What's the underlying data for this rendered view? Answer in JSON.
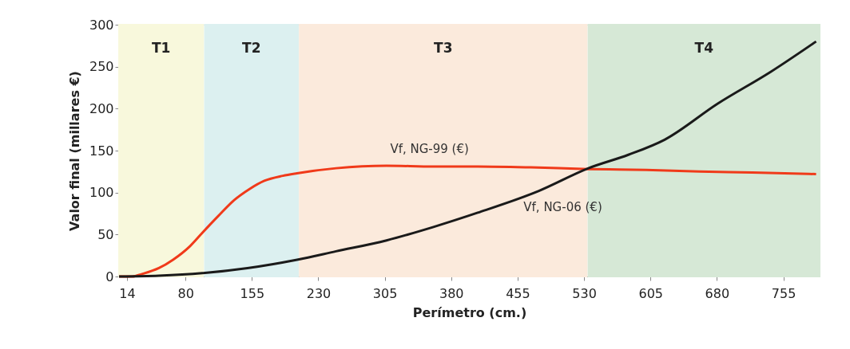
{
  "chart_data": {
    "type": "line",
    "xlabel": "Perímetro (cm.)",
    "ylabel": "Valor final (millares €)",
    "xlim": [
      5,
      796
    ],
    "ylim": [
      0,
      300
    ],
    "xticks": [
      14,
      80,
      155,
      230,
      305,
      380,
      455,
      530,
      605,
      680,
      755
    ],
    "yticks": [
      0,
      50,
      100,
      150,
      200,
      250,
      300
    ],
    "grid": false,
    "line_style": "solid",
    "marker": "none",
    "bands": [
      {
        "axis": "x",
        "from": 5,
        "to": 100,
        "label": "T1",
        "color": "#f8f8dc"
      },
      {
        "axis": "x",
        "from": 102,
        "to": 207,
        "label": "T2",
        "color": "#dcf0f0"
      },
      {
        "axis": "x",
        "from": 209,
        "to": 533,
        "label": "T3",
        "color": "#fbeadc"
      },
      {
        "axis": "x",
        "from": 535,
        "to": 796,
        "label": "T4",
        "color": "#d6e8d6"
      }
    ],
    "series": [
      {
        "name": "Vf, NG-99 (€)",
        "color": "#f03a1a",
        "x": [
          5,
          20,
          31,
          50,
          66,
          85,
          99,
          117,
          135,
          152,
          169,
          190,
          206,
          250,
          307,
          360,
          410,
          470,
          535,
          600,
          660,
          720,
          792
        ],
        "values": [
          0,
          0,
          3,
          10,
          20,
          36,
          52,
          72,
          91,
          104,
          114,
          120,
          123,
          129,
          132,
          131,
          131,
          130,
          128,
          127,
          125,
          124,
          122
        ]
      },
      {
        "name": "Vf, NG-06 (€)",
        "color": "#1a1a1a",
        "x": [
          5,
          50,
          99,
          150,
          206,
          250,
          307,
          360,
          410,
          479,
          535,
          580,
          621,
          681,
          741,
          792
        ],
        "values": [
          0,
          1,
          4,
          10,
          20,
          30,
          43,
          59,
          76,
          102,
          129,
          145,
          163,
          206,
          244,
          280
        ]
      }
    ]
  }
}
